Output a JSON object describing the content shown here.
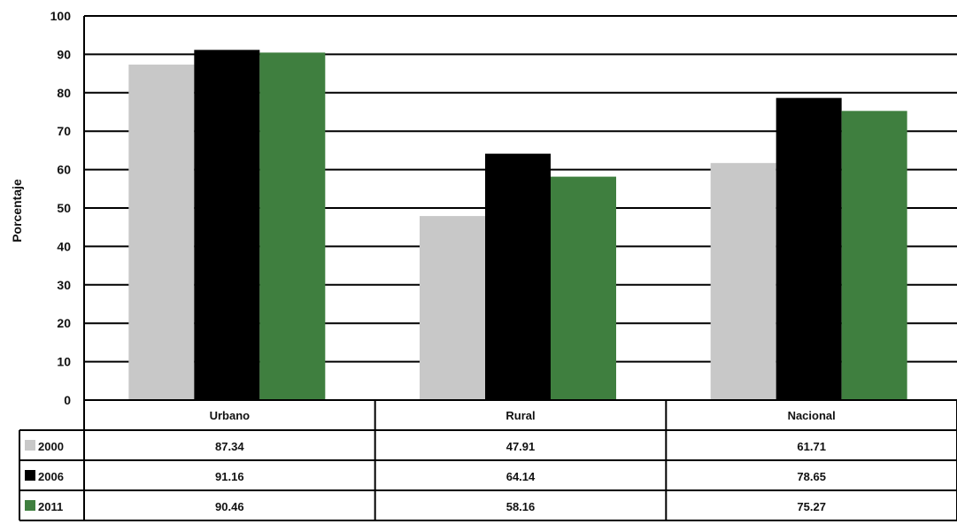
{
  "chart_data": {
    "type": "bar",
    "title": "",
    "ylabel": "Porcentaje",
    "xlabel": "",
    "ylim": [
      0,
      100
    ],
    "yticks": [
      0,
      10,
      20,
      30,
      40,
      50,
      60,
      70,
      80,
      90,
      100
    ],
    "grid": true,
    "legend": "data-table",
    "categories": [
      "Urbano",
      "Rural",
      "Nacional"
    ],
    "series": [
      {
        "name": "2000",
        "color": "#c8c8c8",
        "values": [
          87.34,
          47.91,
          61.71
        ],
        "labels": [
          "87.34",
          "47.91",
          "61.71"
        ]
      },
      {
        "name": "2006",
        "color": "#000000",
        "values": [
          91.16,
          64.14,
          78.65
        ],
        "labels": [
          "91.16",
          "64.14",
          "78.65"
        ]
      },
      {
        "name": "2011",
        "color": "#3f7f3f",
        "values": [
          90.46,
          58.16,
          75.27
        ],
        "labels": [
          "90.46",
          "58.16",
          "75.27"
        ]
      }
    ]
  }
}
